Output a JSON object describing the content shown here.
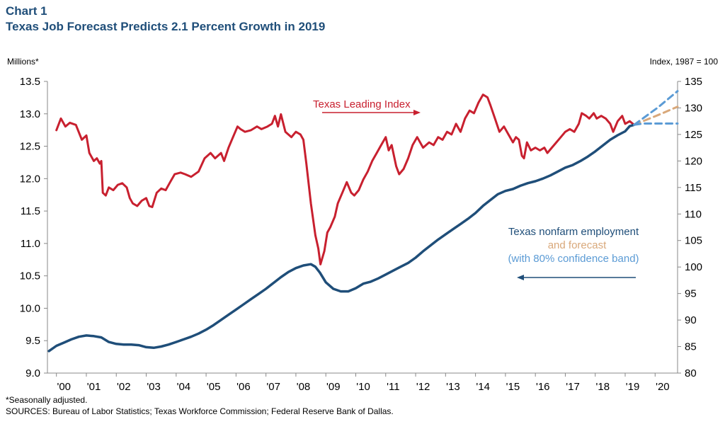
{
  "header": {
    "chart_number": "Chart 1",
    "title": "Texas Job Forecast Predicts 2.1 Percent Growth in 2019"
  },
  "axes": {
    "left_unit": "Millions*",
    "right_unit": "Index, 1987 = 100"
  },
  "footer": {
    "note": "*Seasonally adjusted.",
    "sources": "SOURCES: Bureau of Labor Statistics; Texas Workforce Commission; Federal Reserve Bank of Dallas."
  },
  "colors": {
    "leading": "#c8202f",
    "employment": "#1f4e79",
    "forecast": "#d9a87a",
    "band": "#5b9bd5"
  },
  "chart_data": {
    "type": "line",
    "title": "Texas Job Forecast Predicts 2.1 Percent Growth in 2019",
    "x_range": [
      1999.7,
      2020.75
    ],
    "x_ticks": [
      {
        "x": 2000.25,
        "label": "'00"
      },
      {
        "x": 2001.25,
        "label": "'01"
      },
      {
        "x": 2002.25,
        "label": "'02"
      },
      {
        "x": 2003.25,
        "label": "'03"
      },
      {
        "x": 2004.25,
        "label": "'04"
      },
      {
        "x": 2005.25,
        "label": "'05"
      },
      {
        "x": 2006.25,
        "label": "'06"
      },
      {
        "x": 2007.25,
        "label": "'07"
      },
      {
        "x": 2008.25,
        "label": "'08"
      },
      {
        "x": 2009.25,
        "label": "'09"
      },
      {
        "x": 2010.25,
        "label": "'10"
      },
      {
        "x": 2011.25,
        "label": "'11"
      },
      {
        "x": 2012.25,
        "label": "'12"
      },
      {
        "x": 2013.25,
        "label": "'13"
      },
      {
        "x": 2014.25,
        "label": "'14"
      },
      {
        "x": 2015.25,
        "label": "'15"
      },
      {
        "x": 2016.25,
        "label": "'16"
      },
      {
        "x": 2017.25,
        "label": "'17"
      },
      {
        "x": 2018.25,
        "label": "'18"
      },
      {
        "x": 2019.25,
        "label": "'19"
      },
      {
        "x": 2020.25,
        "label": "'20"
      }
    ],
    "y_left": {
      "label": "Millions*",
      "range": [
        9.0,
        13.5
      ],
      "ticks": [
        "9.0",
        "9.5",
        "10.0",
        "10.5",
        "11.0",
        "11.5",
        "12.0",
        "12.5",
        "13.0",
        "13.5"
      ]
    },
    "y_right": {
      "label": "Index, 1987 = 100",
      "range": [
        80,
        135
      ],
      "ticks": [
        "80",
        "85",
        "90",
        "95",
        "100",
        "105",
        "110",
        "115",
        "120",
        "125",
        "130",
        "135"
      ]
    },
    "series": [
      {
        "name": "Texas Leading Index",
        "axis": "right",
        "label": "Texas Leading Index",
        "points": [
          [
            2000.0,
            125.8
          ],
          [
            2000.15,
            128.0
          ],
          [
            2000.3,
            126.5
          ],
          [
            2000.45,
            127.2
          ],
          [
            2000.65,
            126.8
          ],
          [
            2000.85,
            124.0
          ],
          [
            2001.0,
            124.8
          ],
          [
            2001.1,
            121.5
          ],
          [
            2001.25,
            120.0
          ],
          [
            2001.35,
            120.5
          ],
          [
            2001.45,
            119.5
          ],
          [
            2001.5,
            120.0
          ],
          [
            2001.55,
            114.0
          ],
          [
            2001.65,
            113.5
          ],
          [
            2001.75,
            115.0
          ],
          [
            2001.9,
            114.5
          ],
          [
            2002.05,
            115.5
          ],
          [
            2002.2,
            115.8
          ],
          [
            2002.35,
            115.0
          ],
          [
            2002.45,
            113.0
          ],
          [
            2002.55,
            112.0
          ],
          [
            2002.7,
            111.5
          ],
          [
            2002.85,
            112.5
          ],
          [
            2003.0,
            113.0
          ],
          [
            2003.1,
            111.5
          ],
          [
            2003.2,
            111.3
          ],
          [
            2003.35,
            114.0
          ],
          [
            2003.5,
            114.8
          ],
          [
            2003.65,
            114.5
          ],
          [
            2003.8,
            116.0
          ],
          [
            2003.95,
            117.5
          ],
          [
            2004.15,
            117.8
          ],
          [
            2004.3,
            117.5
          ],
          [
            2004.5,
            117.0
          ],
          [
            2004.75,
            118.0
          ],
          [
            2004.95,
            120.5
          ],
          [
            2005.15,
            121.5
          ],
          [
            2005.3,
            120.5
          ],
          [
            2005.5,
            121.5
          ],
          [
            2005.6,
            120.0
          ],
          [
            2005.75,
            122.5
          ],
          [
            2005.9,
            124.5
          ],
          [
            2006.05,
            126.5
          ],
          [
            2006.15,
            126.0
          ],
          [
            2006.3,
            125.5
          ],
          [
            2006.5,
            125.8
          ],
          [
            2006.7,
            126.5
          ],
          [
            2006.85,
            126.0
          ],
          [
            2007.05,
            126.5
          ],
          [
            2007.2,
            127.0
          ],
          [
            2007.3,
            128.5
          ],
          [
            2007.4,
            126.5
          ],
          [
            2007.5,
            128.8
          ],
          [
            2007.65,
            125.5
          ],
          [
            2007.85,
            124.5
          ],
          [
            2008.0,
            125.5
          ],
          [
            2008.15,
            125.0
          ],
          [
            2008.25,
            124.0
          ],
          [
            2008.35,
            119.5
          ],
          [
            2008.5,
            112.0
          ],
          [
            2008.65,
            106.0
          ],
          [
            2008.75,
            103.5
          ],
          [
            2008.82,
            100.5
          ],
          [
            2008.95,
            103.0
          ],
          [
            2009.05,
            106.5
          ],
          [
            2009.15,
            107.5
          ],
          [
            2009.3,
            109.5
          ],
          [
            2009.4,
            112.0
          ],
          [
            2009.55,
            114.0
          ],
          [
            2009.7,
            116.0
          ],
          [
            2009.85,
            114.0
          ],
          [
            2009.95,
            113.5
          ],
          [
            2010.1,
            114.5
          ],
          [
            2010.25,
            116.5
          ],
          [
            2010.4,
            118.0
          ],
          [
            2010.55,
            120.0
          ],
          [
            2010.7,
            121.5
          ],
          [
            2010.85,
            123.0
          ],
          [
            2011.0,
            124.5
          ],
          [
            2011.1,
            122.0
          ],
          [
            2011.2,
            123.0
          ],
          [
            2011.35,
            119.0
          ],
          [
            2011.45,
            117.5
          ],
          [
            2011.6,
            118.5
          ],
          [
            2011.75,
            120.5
          ],
          [
            2011.9,
            123.0
          ],
          [
            2012.05,
            124.5
          ],
          [
            2012.25,
            122.5
          ],
          [
            2012.45,
            123.5
          ],
          [
            2012.6,
            123.0
          ],
          [
            2012.75,
            124.5
          ],
          [
            2012.9,
            124.0
          ],
          [
            2013.05,
            125.5
          ],
          [
            2013.2,
            125.0
          ],
          [
            2013.35,
            127.0
          ],
          [
            2013.5,
            125.5
          ],
          [
            2013.65,
            128.0
          ],
          [
            2013.8,
            129.5
          ],
          [
            2013.95,
            129.0
          ],
          [
            2014.1,
            131.0
          ],
          [
            2014.25,
            132.5
          ],
          [
            2014.4,
            132.0
          ],
          [
            2014.5,
            130.5
          ],
          [
            2014.65,
            128.0
          ],
          [
            2014.8,
            125.5
          ],
          [
            2014.95,
            126.5
          ],
          [
            2015.1,
            125.0
          ],
          [
            2015.25,
            123.5
          ],
          [
            2015.35,
            124.5
          ],
          [
            2015.45,
            124.0
          ],
          [
            2015.55,
            121.0
          ],
          [
            2015.62,
            120.5
          ],
          [
            2015.72,
            123.5
          ],
          [
            2015.85,
            122.0
          ],
          [
            2016.0,
            122.5
          ],
          [
            2016.15,
            122.0
          ],
          [
            2016.3,
            122.5
          ],
          [
            2016.4,
            121.5
          ],
          [
            2016.55,
            122.5
          ],
          [
            2016.7,
            123.5
          ],
          [
            2016.85,
            124.5
          ],
          [
            2017.0,
            125.5
          ],
          [
            2017.15,
            126.0
          ],
          [
            2017.3,
            125.5
          ],
          [
            2017.45,
            127.0
          ],
          [
            2017.55,
            129.0
          ],
          [
            2017.7,
            128.5
          ],
          [
            2017.8,
            128.0
          ],
          [
            2017.95,
            129.0
          ],
          [
            2018.05,
            128.0
          ],
          [
            2018.2,
            128.5
          ],
          [
            2018.35,
            128.0
          ],
          [
            2018.5,
            127.0
          ],
          [
            2018.6,
            125.5
          ],
          [
            2018.75,
            127.5
          ],
          [
            2018.9,
            128.5
          ],
          [
            2019.0,
            127.0
          ],
          [
            2019.15,
            127.5
          ],
          [
            2019.3,
            126.8
          ]
        ]
      },
      {
        "name": "Texas nonfarm employment",
        "axis": "left",
        "label": "Texas nonfarm employment",
        "points": [
          [
            1999.75,
            9.34
          ],
          [
            2000.0,
            9.42
          ],
          [
            2000.25,
            9.47
          ],
          [
            2000.5,
            9.52
          ],
          [
            2000.75,
            9.56
          ],
          [
            2001.0,
            9.58
          ],
          [
            2001.25,
            9.57
          ],
          [
            2001.5,
            9.55
          ],
          [
            2001.75,
            9.48
          ],
          [
            2002.0,
            9.45
          ],
          [
            2002.25,
            9.44
          ],
          [
            2002.5,
            9.44
          ],
          [
            2002.75,
            9.43
          ],
          [
            2003.0,
            9.4
          ],
          [
            2003.25,
            9.39
          ],
          [
            2003.5,
            9.41
          ],
          [
            2003.75,
            9.44
          ],
          [
            2004.0,
            9.48
          ],
          [
            2004.25,
            9.52
          ],
          [
            2004.5,
            9.56
          ],
          [
            2004.75,
            9.61
          ],
          [
            2005.0,
            9.67
          ],
          [
            2005.25,
            9.74
          ],
          [
            2005.5,
            9.82
          ],
          [
            2005.75,
            9.9
          ],
          [
            2006.0,
            9.98
          ],
          [
            2006.25,
            10.06
          ],
          [
            2006.5,
            10.14
          ],
          [
            2006.75,
            10.22
          ],
          [
            2007.0,
            10.3
          ],
          [
            2007.25,
            10.39
          ],
          [
            2007.5,
            10.48
          ],
          [
            2007.75,
            10.56
          ],
          [
            2008.0,
            10.62
          ],
          [
            2008.25,
            10.66
          ],
          [
            2008.5,
            10.68
          ],
          [
            2008.65,
            10.64
          ],
          [
            2008.8,
            10.55
          ],
          [
            2009.0,
            10.4
          ],
          [
            2009.25,
            10.3
          ],
          [
            2009.5,
            10.26
          ],
          [
            2009.75,
            10.26
          ],
          [
            2010.0,
            10.31
          ],
          [
            2010.25,
            10.38
          ],
          [
            2010.5,
            10.41
          ],
          [
            2010.75,
            10.46
          ],
          [
            2011.0,
            10.52
          ],
          [
            2011.25,
            10.58
          ],
          [
            2011.5,
            10.64
          ],
          [
            2011.75,
            10.7
          ],
          [
            2012.0,
            10.78
          ],
          [
            2012.25,
            10.88
          ],
          [
            2012.5,
            10.97
          ],
          [
            2012.75,
            11.06
          ],
          [
            2013.0,
            11.14
          ],
          [
            2013.25,
            11.22
          ],
          [
            2013.5,
            11.3
          ],
          [
            2013.75,
            11.38
          ],
          [
            2014.0,
            11.47
          ],
          [
            2014.25,
            11.58
          ],
          [
            2014.5,
            11.67
          ],
          [
            2014.75,
            11.76
          ],
          [
            2015.0,
            11.81
          ],
          [
            2015.25,
            11.84
          ],
          [
            2015.5,
            11.89
          ],
          [
            2015.75,
            11.93
          ],
          [
            2016.0,
            11.96
          ],
          [
            2016.25,
            12.0
          ],
          [
            2016.5,
            12.05
          ],
          [
            2016.75,
            12.11
          ],
          [
            2017.0,
            12.17
          ],
          [
            2017.25,
            12.21
          ],
          [
            2017.5,
            12.27
          ],
          [
            2017.75,
            12.34
          ],
          [
            2018.0,
            12.42
          ],
          [
            2018.25,
            12.51
          ],
          [
            2018.5,
            12.6
          ],
          [
            2018.75,
            12.67
          ],
          [
            2019.0,
            12.73
          ],
          [
            2019.15,
            12.81
          ],
          [
            2019.3,
            12.83
          ]
        ]
      },
      {
        "name": "Forecast",
        "axis": "left",
        "label": "and forecast",
        "points": [
          [
            2019.3,
            12.83
          ],
          [
            2020.2,
            13.0
          ],
          [
            2020.75,
            13.11
          ]
        ]
      },
      {
        "name": "80% confidence band (upper)",
        "axis": "left",
        "label": "(with 80% confidence band)",
        "points": [
          [
            2019.3,
            12.83
          ],
          [
            2020.1,
            13.1
          ],
          [
            2020.75,
            13.35
          ]
        ]
      },
      {
        "name": "80% confidence band (lower)",
        "axis": "left",
        "label": "",
        "points": [
          [
            2019.3,
            12.83
          ],
          [
            2019.6,
            12.85
          ],
          [
            2020.75,
            12.85
          ]
        ]
      }
    ]
  }
}
